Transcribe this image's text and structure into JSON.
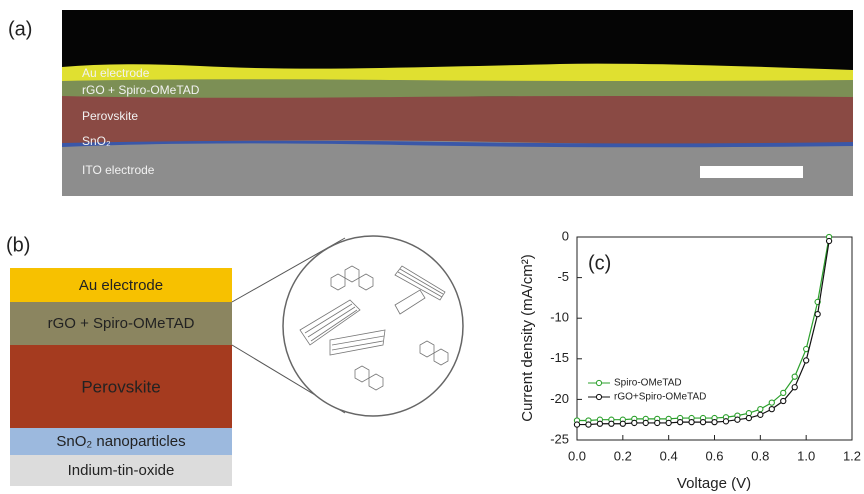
{
  "panels": {
    "a": {
      "label": "(a)",
      "layers": [
        "Au electrode",
        "rGO + Spiro-OMeTAD",
        "Perovskite",
        "SnO₂",
        "ITO electrode"
      ]
    },
    "b": {
      "label": "(b)",
      "layers": [
        "Au electrode",
        "rGO + Spiro-OMeTAD",
        "Perovskite",
        "SnO₂ nanoparticles",
        "Indium-tin-oxide"
      ]
    }
  },
  "chart_data": {
    "type": "line",
    "annotation": "(c)",
    "x_label": "Voltage (V)",
    "y_label": "Current density (mA/cm²)",
    "x": [
      0,
      0.05,
      0.1,
      0.15,
      0.2,
      0.25,
      0.3,
      0.35,
      0.4,
      0.45,
      0.5,
      0.55,
      0.6,
      0.65,
      0.7,
      0.75,
      0.8,
      0.85,
      0.9,
      0.95,
      1.0,
      1.05,
      1.1
    ],
    "series": [
      {
        "name": "Spiro-OMeTAD",
        "color": "#2ca02c",
        "values": [
          -22.6,
          -22.6,
          -22.5,
          -22.5,
          -22.5,
          -22.4,
          -22.4,
          -22.4,
          -22.4,
          -22.3,
          -22.3,
          -22.3,
          -22.3,
          -22.2,
          -22.0,
          -21.7,
          -21.2,
          -20.4,
          -19.2,
          -17.2,
          -13.8,
          -8.0,
          0
        ]
      },
      {
        "name": "rGO+Spiro-OMeTAD",
        "color": "#111111",
        "values": [
          -23.1,
          -23.1,
          -23.0,
          -23.0,
          -23.0,
          -22.9,
          -22.9,
          -22.9,
          -22.9,
          -22.8,
          -22.8,
          -22.8,
          -22.8,
          -22.7,
          -22.5,
          -22.3,
          -21.9,
          -21.2,
          -20.2,
          -18.5,
          -15.2,
          -9.5,
          -0.5
        ]
      }
    ],
    "xlim": [
      0,
      1.2
    ],
    "ylim": [
      -25,
      0
    ],
    "xticks": [
      {
        "value": 0,
        "label": "0.0"
      },
      {
        "value": 0.2,
        "label": "0.2"
      },
      {
        "value": 0.4,
        "label": "0.4"
      },
      {
        "value": 0.6,
        "label": "0.6"
      },
      {
        "value": 0.8,
        "label": "0.8"
      },
      {
        "value": 1,
        "label": "1.0"
      },
      {
        "value": 1.2,
        "label": "1.2"
      }
    ],
    "yticks": [
      0,
      -5,
      -10,
      -15,
      -20,
      -25
    ]
  }
}
